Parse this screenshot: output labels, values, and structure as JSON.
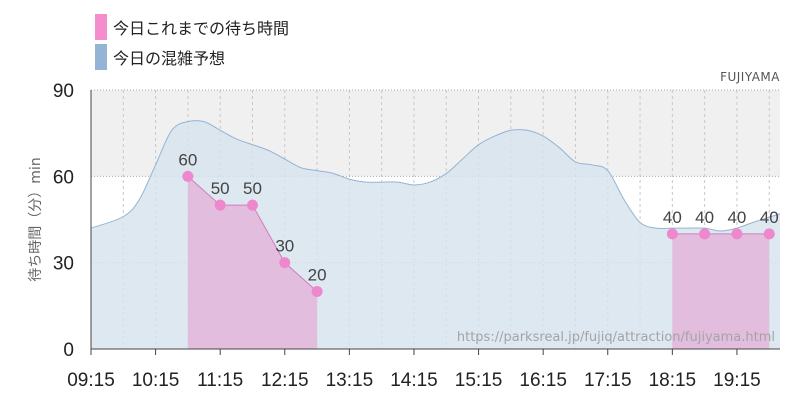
{
  "legend": {
    "actual_label": "今日これまでの待ち時間",
    "forecast_label": "今日の混雑予想"
  },
  "attraction": "FUJIYAMA",
  "source_url": "https://parksreal.jp/fujiq/attraction/fujiyama.html",
  "chart_data": {
    "type": "area",
    "title": "",
    "ylabel": "待ち時間（分）min",
    "xlabel": "",
    "ylim": [
      0,
      90
    ],
    "yticks": [
      0,
      30,
      60,
      90
    ],
    "xlim": [
      "09:15",
      "19:55"
    ],
    "xticks": [
      "09:15",
      "10:15",
      "11:15",
      "12:15",
      "13:15",
      "14:15",
      "15:15",
      "16:15",
      "17:15",
      "18:15",
      "19:15"
    ],
    "grid": true,
    "highlight_band": [
      60,
      90
    ],
    "legend_position": "top-left",
    "colors": {
      "actual": "#f58ccc",
      "forecast": "#93b4d4",
      "actual_fill": "#e2b8dc",
      "forecast_fill": "#d5e3ee",
      "actual_point": "#ee88cc"
    },
    "series": [
      {
        "name": "今日の混雑予想",
        "x": [
          "09:15",
          "09:45",
          "10:00",
          "10:15",
          "10:30",
          "10:45",
          "11:00",
          "11:15",
          "11:30",
          "11:45",
          "12:00",
          "12:15",
          "12:30",
          "12:45",
          "13:00",
          "13:15",
          "13:30",
          "13:45",
          "14:00",
          "14:15",
          "14:30",
          "14:45",
          "15:00",
          "15:15",
          "15:30",
          "15:45",
          "16:00",
          "16:15",
          "16:30",
          "16:45",
          "17:00",
          "17:15",
          "17:30",
          "17:45",
          "18:00",
          "18:15",
          "18:30",
          "18:45",
          "19:00",
          "19:15",
          "19:30",
          "19:55"
        ],
        "values": [
          42,
          46,
          52,
          64,
          76,
          79,
          79,
          76,
          73,
          71,
          69,
          66,
          63,
          62,
          61,
          59,
          58,
          58,
          58,
          57,
          58,
          61,
          66,
          71,
          74,
          76,
          76,
          74,
          70,
          65,
          64,
          62,
          52,
          44,
          42,
          42,
          42,
          42,
          41,
          42,
          44,
          47
        ]
      },
      {
        "name": "今日これまでの待ち時間",
        "x": [
          "10:45",
          "11:15",
          "11:45",
          "12:15",
          "12:45",
          "18:15",
          "18:45",
          "19:15",
          "19:45"
        ],
        "values": [
          60,
          50,
          50,
          30,
          20,
          40,
          40,
          40,
          40
        ]
      }
    ]
  }
}
